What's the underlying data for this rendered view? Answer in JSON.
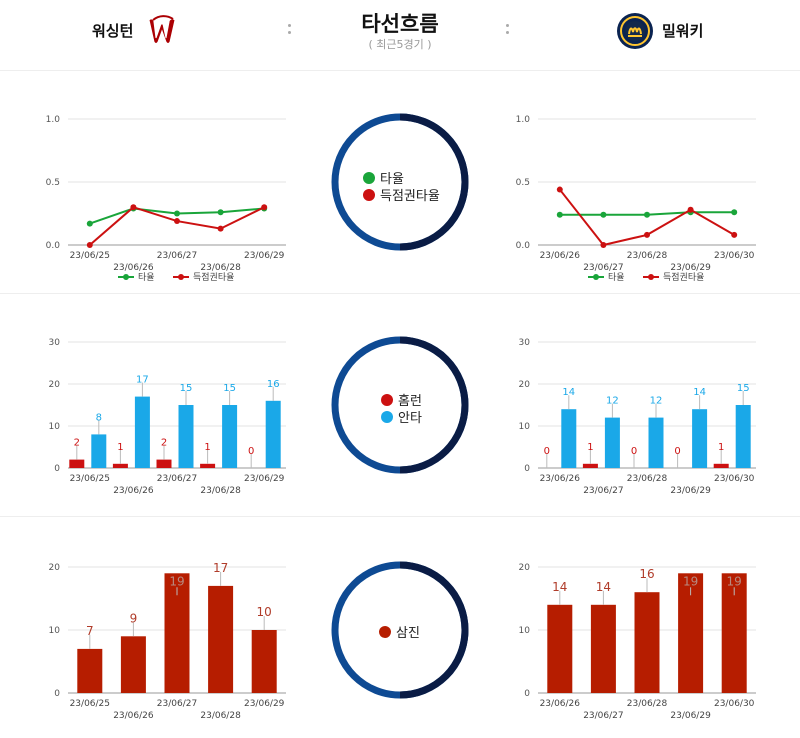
{
  "header": {
    "home_team": "워싱턴",
    "away_team": "밀워키",
    "title": "타선흐름",
    "subtitle": "( 최근5경기 )",
    "home_logo_icon": "nationals-logo-icon",
    "away_logo_icon": "brewers-logo-icon"
  },
  "colors": {
    "avg": "#1aa53a",
    "risp": "#cc1111",
    "hr": "#cc1111",
    "hits": "#1aa8e8",
    "so": "#b61d00",
    "ring_light": "#0e4a93",
    "ring_dark": "#0a1c45"
  },
  "legends": {
    "avg": "타율",
    "risp": "득점권타율",
    "hr": "홈런",
    "hits": "안타",
    "so": "삼진"
  },
  "chart_data": [
    {
      "id": "wsh-avg",
      "type": "line",
      "x": [
        "23/06/25",
        "23/06/26",
        "23/06/27",
        "23/06/28",
        "23/06/29"
      ],
      "ylim": [
        0,
        1.0
      ],
      "yticks": [
        "0.0",
        "0.5",
        "1.0"
      ],
      "series": [
        {
          "name": "타율",
          "values": [
            0.17,
            0.29,
            0.25,
            0.26,
            0.29
          ]
        },
        {
          "name": "득점권타율",
          "values": [
            0.0,
            0.3,
            0.19,
            0.13,
            0.3
          ]
        }
      ],
      "legend": "bottom"
    },
    {
      "id": "mil-avg",
      "type": "line",
      "x": [
        "23/06/26",
        "23/06/27",
        "23/06/28",
        "23/06/29",
        "23/06/30"
      ],
      "ylim": [
        0,
        1.0
      ],
      "yticks": [
        "0.0",
        "0.5",
        "1.0"
      ],
      "series": [
        {
          "name": "타율",
          "values": [
            0.24,
            0.24,
            0.24,
            0.26,
            0.26
          ]
        },
        {
          "name": "득점권타율",
          "values": [
            0.44,
            0.0,
            0.08,
            0.28,
            0.08
          ]
        }
      ],
      "legend": "bottom"
    },
    {
      "id": "wsh-hits",
      "type": "bar",
      "x": [
        "23/06/25",
        "23/06/26",
        "23/06/27",
        "23/06/28",
        "23/06/29"
      ],
      "ylim": [
        0,
        30
      ],
      "yticks": [
        "0",
        "10",
        "20",
        "30"
      ],
      "series": [
        {
          "name": "홈런",
          "values": [
            2,
            1,
            2,
            1,
            0
          ],
          "labels": [
            "2",
            "1",
            "2",
            "1",
            "0"
          ]
        },
        {
          "name": "안타",
          "values": [
            8,
            17,
            15,
            15,
            16
          ],
          "labels": [
            "8",
            "17",
            "15",
            "15",
            "16"
          ]
        }
      ]
    },
    {
      "id": "mil-hits",
      "type": "bar",
      "x": [
        "23/06/26",
        "23/06/27",
        "23/06/28",
        "23/06/29",
        "23/06/30"
      ],
      "ylim": [
        0,
        30
      ],
      "yticks": [
        "0",
        "10",
        "20",
        "30"
      ],
      "series": [
        {
          "name": "홈런",
          "values": [
            0,
            1,
            0,
            0,
            1
          ],
          "labels": [
            "0",
            "1",
            "0",
            "0",
            "1"
          ]
        },
        {
          "name": "안타",
          "values": [
            14,
            12,
            12,
            14,
            15
          ],
          "labels": [
            "14",
            "12",
            "12",
            "14",
            "15"
          ]
        }
      ]
    },
    {
      "id": "wsh-so",
      "type": "bar",
      "x": [
        "23/06/25",
        "23/06/26",
        "23/06/27",
        "23/06/28",
        "23/06/29"
      ],
      "ylim": [
        0,
        20
      ],
      "yticks": [
        "0",
        "10",
        "20"
      ],
      "series": [
        {
          "name": "삼진",
          "values": [
            7,
            9,
            19,
            17,
            10
          ],
          "labels": [
            "7",
            "9",
            "19",
            "17",
            "10"
          ]
        }
      ]
    },
    {
      "id": "mil-so",
      "type": "bar",
      "x": [
        "23/06/26",
        "23/06/27",
        "23/06/28",
        "23/06/29",
        "23/06/30"
      ],
      "ylim": [
        0,
        20
      ],
      "yticks": [
        "0",
        "10",
        "20"
      ],
      "series": [
        {
          "name": "삼진",
          "values": [
            14,
            14,
            16,
            19,
            19
          ],
          "labels": [
            "14",
            "14",
            "16",
            "19",
            "19"
          ]
        }
      ]
    }
  ]
}
